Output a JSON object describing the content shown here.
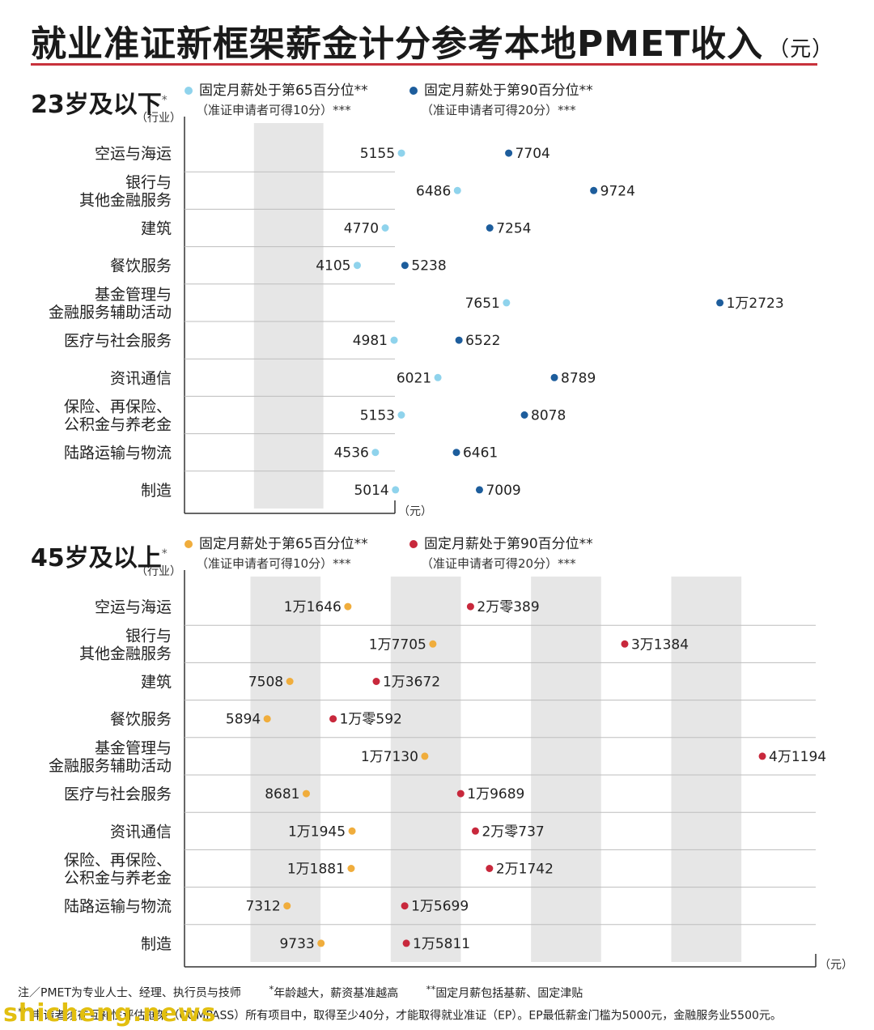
{
  "title": "就业准证新框架薪金计分参考本地PMET收入",
  "title_unit": "（元）",
  "colors": {
    "young_p65": "#8fd3ec",
    "young_p90": "#1d5d9c",
    "old_p65": "#f0ad3c",
    "old_p90": "#c8283c",
    "band": "#e6e6e6",
    "accent_rule": "#c8323c"
  },
  "sections": {
    "young": {
      "label": "23岁及以下",
      "label_mark": "*",
      "legend_p65": "固定月薪处于第65百分位**",
      "legend_p65_sub": "（准证申请者可得10分）***",
      "legend_p90": "固定月薪处于第90百分位**",
      "legend_p90_sub": "（准证申请者可得20分）***"
    },
    "old": {
      "label": "45岁及以上",
      "label_mark": "*",
      "legend_p65": "固定月薪处于第65百分位**",
      "legend_p65_sub": "（准证申请者可得10分）***",
      "legend_p90": "固定月薪处于第90百分位**",
      "legend_p90_sub": "（准证申请者可得20分）***"
    }
  },
  "chart_data": [
    {
      "type": "dumbbell",
      "section": "23岁及以下",
      "category_axis_label": "（行业）",
      "unit_label": "（元）",
      "categories": [
        "空运与海运",
        "银行与\n其他金融服务",
        "建筑",
        "餐饮服务",
        "基金管理与\n金融服务辅助活动",
        "医疗与社会服务",
        "资讯通信",
        "保险、再保险、\n公积金与养老金",
        "陆路运输与物流",
        "制造"
      ],
      "series": [
        {
          "name": "固定月薪处于第65百分位",
          "values": [
            5155,
            6486,
            4770,
            4105,
            7651,
            4981,
            6021,
            5153,
            4536,
            5014
          ],
          "labels": [
            "5155",
            "6486",
            "4770",
            "4105",
            "7651",
            "4981",
            "6021",
            "5153",
            "4536",
            "5014"
          ]
        },
        {
          "name": "固定月薪处于第90百分位",
          "values": [
            7704,
            9724,
            7254,
            5238,
            12723,
            6522,
            8789,
            8078,
            6461,
            7009
          ],
          "labels": [
            "7704",
            "9724",
            "7254",
            "5238",
            "1万2723",
            "6522",
            "8789",
            "8078",
            "6461",
            "7009"
          ]
        }
      ],
      "xlim": [
        0,
        15000
      ],
      "grid": false
    },
    {
      "type": "dumbbell",
      "section": "45岁及以上",
      "category_axis_label": "（行业）",
      "unit_label": "（元）",
      "categories": [
        "空运与海运",
        "银行与\n其他金融服务",
        "建筑",
        "餐饮服务",
        "基金管理与\n金融服务辅助活动",
        "医疗与社会服务",
        "资讯通信",
        "保险、再保险、\n公积金与养老金",
        "陆路运输与物流",
        "制造"
      ],
      "series": [
        {
          "name": "固定月薪处于第65百分位",
          "values": [
            11646,
            17705,
            7508,
            5894,
            17130,
            8681,
            11945,
            11881,
            7312,
            9733
          ],
          "labels": [
            "1万1646",
            "1万7705",
            "7508",
            "5894",
            "1万7130",
            "8681",
            "1万1945",
            "1万1881",
            "7312",
            "9733"
          ]
        },
        {
          "name": "固定月薪处于第90百分位",
          "values": [
            20389,
            31384,
            13672,
            10592,
            41194,
            19689,
            20737,
            21742,
            15699,
            15811
          ],
          "labels": [
            "2万零389",
            "3万1384",
            "1万3672",
            "1万零592",
            "4万1194",
            "1万9689",
            "2万零737",
            "2万1742",
            "1万5699",
            "1万5811"
          ]
        }
      ],
      "xlim": [
        0,
        45000
      ],
      "grid": false
    }
  ],
  "footnotes": {
    "line1_a": "注／PMET为专业人士、经理、执行员与技师",
    "line1_b_mark": "*",
    "line1_b": "年龄越大，薪资基准越高",
    "line1_c_mark": "**",
    "line1_c": "固定月薪包括基薪、固定津贴",
    "line2_mark": "***",
    "line2": "申请者须在互补性评估框架（COMPASS）所有项目中，取得至少40分，才能取得就业准证（EP）。EP最低薪金门槛为5000元，金融服务业5500元。"
  },
  "watermark": "shicheng.news"
}
